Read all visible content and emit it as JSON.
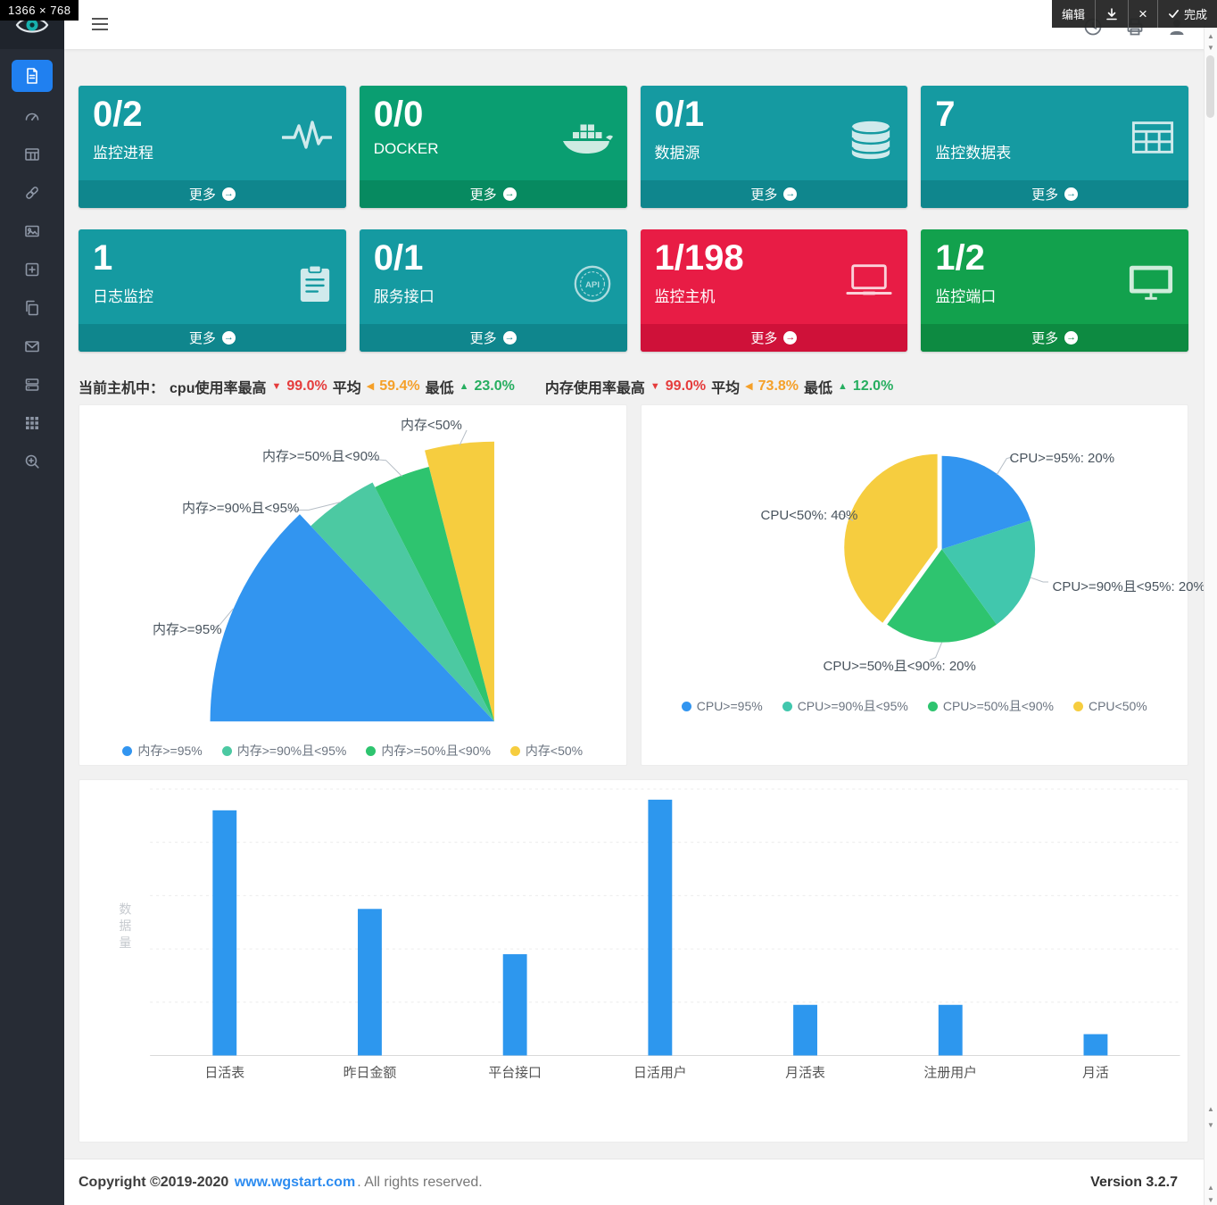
{
  "overlay": {
    "size_badge": "1366 × 768",
    "toolbar": {
      "edit": "编辑",
      "done": "完成"
    }
  },
  "sidebar": {
    "items": [
      "log-file",
      "dashboard",
      "table",
      "link",
      "image",
      "add-box",
      "copy",
      "mail",
      "server",
      "apps",
      "zoom"
    ]
  },
  "stat_cards": [
    {
      "value": "0/2",
      "label": "监控进程",
      "more": "更多",
      "color": "#159aa1",
      "footer_color": "#0f868d",
      "icon": "pulse-icon"
    },
    {
      "value": "0/0",
      "label": "DOCKER",
      "more": "更多",
      "color": "#0a9e71",
      "footer_color": "#078a60",
      "icon": "docker-icon"
    },
    {
      "value": "0/1",
      "label": "数据源",
      "more": "更多",
      "color": "#159aa1",
      "footer_color": "#0f868d",
      "icon": "database-icon"
    },
    {
      "value": "7",
      "label": "监控数据表",
      "more": "更多",
      "color": "#159aa1",
      "footer_color": "#0f868d",
      "icon": "table-icon"
    },
    {
      "value": "1",
      "label": "日志监控",
      "more": "更多",
      "color": "#159aa1",
      "footer_color": "#0f868d",
      "icon": "clipboard-icon"
    },
    {
      "value": "0/1",
      "label": "服务接口",
      "more": "更多",
      "color": "#159aa1",
      "footer_color": "#0f868d",
      "icon": "api-icon"
    },
    {
      "value": "1/198",
      "label": "监控主机",
      "more": "更多",
      "color": "#e81c45",
      "footer_color": "#cf1139",
      "icon": "laptop-icon"
    },
    {
      "value": "1/2",
      "label": "监控端口",
      "more": "更多",
      "color": "#12a14d",
      "footer_color": "#0d8a41",
      "icon": "monitor-icon"
    }
  ],
  "summary": {
    "prefix": "当前主机中：",
    "cpu_max_label": "cpu使用率最高",
    "cpu_max": "99.0%",
    "avg_label": "平均",
    "cpu_avg": "59.4%",
    "min_label": "最低",
    "cpu_min": "23.0%",
    "mem_max_label": "内存使用率最高",
    "mem_max": "99.0%",
    "mem_avg": "73.8%",
    "mem_min": "12.0%",
    "down_arrow": "▼",
    "left_arrow": "◀",
    "up_arrow": "▲"
  },
  "chart_data": [
    {
      "type": "pie",
      "variant": "rose-fan",
      "categories": [
        "内存>=95%",
        "内存>=90%且<95%",
        "内存>=50%且<90%",
        "内存<50%"
      ],
      "values": [
        52,
        18,
        14,
        16
      ],
      "colors": [
        "#3295f0",
        "#4cc9a2",
        "#2ec46f",
        "#f6cd3f"
      ],
      "span_deg": 90,
      "radius_px": [
        320,
        302,
        296,
        315
      ],
      "legend_position": "bottom"
    },
    {
      "type": "pie",
      "categories": [
        "CPU>=95%",
        "CPU>=90%且<95%",
        "CPU>=50%且<90%",
        "CPU<50%"
      ],
      "values": [
        20,
        20,
        20,
        40
      ],
      "point_labels": [
        "CPU>=95%: 20%",
        "CPU>=90%且<95%: 20%",
        "CPU>=50%且<90%: 20%",
        "CPU<50%: 40%"
      ],
      "colors": [
        "#3295f0",
        "#41c7ad",
        "#2ec46f",
        "#f6cd3f"
      ],
      "legend_position": "bottom"
    },
    {
      "type": "bar",
      "categories": [
        "日活表",
        "昨日金额",
        "平台接口",
        "日活用户",
        "月活表",
        "注册用户",
        "月活"
      ],
      "values": [
        92,
        55,
        38,
        96,
        19,
        19,
        8
      ],
      "ylabel": "数据量",
      "ylim": [
        0,
        100
      ],
      "bar_color": "#2d97ee",
      "grid": true
    }
  ],
  "footer": {
    "copyright_bold": "Copyright ©2019-2020",
    "link": "www.wgstart.com",
    "rest": ". All rights reserved.",
    "version": "Version 3.2.7"
  }
}
